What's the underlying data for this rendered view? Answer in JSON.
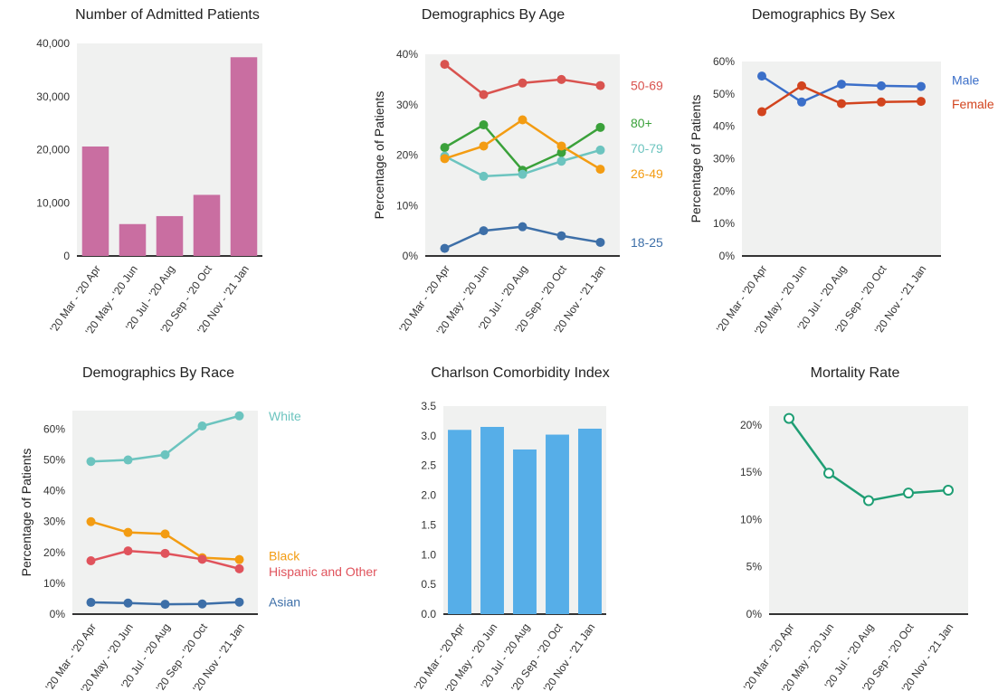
{
  "chart_data": [
    {
      "type": "bar",
      "title": "Number of Admitted Patients",
      "categories": [
        "'20 Mar - '20 Apr",
        "'20 May - '20 Jun",
        "'20 Jul - '20 Aug",
        "'20 Sep - '20 Oct",
        "'20 Nov - '21 Jan"
      ],
      "values": [
        20600,
        6000,
        7500,
        11500,
        37400
      ],
      "ylim": [
        0,
        40000
      ],
      "yticks": [
        0,
        10000,
        20000,
        30000,
        40000
      ],
      "ytick_labels": [
        "0",
        "10,000",
        "20,000",
        "30,000",
        "40,000"
      ],
      "color": "#c96ea1",
      "grid": false
    },
    {
      "type": "line",
      "title": "Demographics By Age",
      "ylabel": "Percentage of Patients",
      "categories": [
        "'20 Mar - '20 Apr",
        "'20 May - '20 Jun",
        "'20 Jul - '20 Aug",
        "'20 Sep - '20 Oct",
        "'20 Nov - '21 Jan"
      ],
      "series": [
        {
          "name": "50-69",
          "values": [
            38,
            32,
            34.3,
            35,
            33.8
          ],
          "color": "#d9534f"
        },
        {
          "name": "80+",
          "values": [
            21.5,
            26,
            17,
            20.5,
            25.5
          ],
          "color": "#3aa13a"
        },
        {
          "name": "70-79",
          "values": [
            19.8,
            15.8,
            16.2,
            18.8,
            21
          ],
          "color": "#6cc4bf"
        },
        {
          "name": "26-49",
          "values": [
            19.3,
            21.8,
            27,
            21.8,
            17.2
          ],
          "color": "#f39c12"
        },
        {
          "name": "18-25",
          "values": [
            1.5,
            5,
            5.8,
            4,
            2.7
          ],
          "color": "#3d6fa8"
        }
      ],
      "ylim": [
        0,
        40
      ],
      "yticks": [
        0,
        10,
        20,
        30,
        40
      ],
      "ytick_labels": [
        "0%",
        "10%",
        "20%",
        "30%",
        "40%"
      ],
      "grid": false,
      "legend_placement": "inline-right"
    },
    {
      "type": "line",
      "title": "Demographics By Sex",
      "ylabel": "Percentage of Patients",
      "categories": [
        "'20 Mar - '20 Apr",
        "'20 May - '20 Jun",
        "'20 Jul - '20 Aug",
        "'20 Sep - '20 Oct",
        "'20 Nov - '21 Jan"
      ],
      "series": [
        {
          "name": "Male",
          "values": [
            55.5,
            47.5,
            53,
            52.5,
            52.3
          ],
          "color": "#3b6fc9"
        },
        {
          "name": "Female",
          "values": [
            44.5,
            52.5,
            47,
            47.5,
            47.7
          ],
          "color": "#d2441e"
        }
      ],
      "ylim": [
        0,
        60
      ],
      "yticks": [
        0,
        10,
        20,
        30,
        40,
        50,
        60
      ],
      "ytick_labels": [
        "0%",
        "10%",
        "20%",
        "30%",
        "40%",
        "50%",
        "60%"
      ],
      "grid": false,
      "legend_placement": "inline-right"
    },
    {
      "type": "line",
      "title": "Demographics By Race",
      "ylabel": "Percentage of Patients",
      "categories": [
        "'20 Mar - '20 Apr",
        "'20 May - '20 Jun",
        "'20 Jul - '20 Aug",
        "'20 Sep - '20 Oct",
        "'20 Nov - '21 Jan"
      ],
      "series": [
        {
          "name": "White",
          "values": [
            49.5,
            50,
            51.7,
            61,
            64.3
          ],
          "color": "#6cc4bf"
        },
        {
          "name": "Black",
          "values": [
            30,
            26.5,
            26,
            18.3,
            17.7
          ],
          "color": "#f39c12"
        },
        {
          "name": "Hispanic and Other",
          "values": [
            17.3,
            20.5,
            19.7,
            17.8,
            14.7
          ],
          "color": "#e0535c"
        },
        {
          "name": "Asian",
          "values": [
            3.8,
            3.6,
            3.2,
            3.3,
            3.9
          ],
          "color": "#3d6fa8"
        }
      ],
      "ylim": [
        0,
        66
      ],
      "yticks": [
        0,
        10,
        20,
        30,
        40,
        50,
        60
      ],
      "ytick_labels": [
        "0%",
        "10%",
        "20%",
        "30%",
        "40%",
        "50%",
        "60%"
      ],
      "grid": false,
      "legend_placement": "inline-right"
    },
    {
      "type": "bar",
      "title": "Charlson Comorbidity Index",
      "categories": [
        "'20 Mar - '20 Apr",
        "'20 May - '20 Jun",
        "'20 Jul - '20 Aug",
        "'20 Sep - '20 Oct",
        "'20 Nov - '21 Jan"
      ],
      "values": [
        3.1,
        3.15,
        2.77,
        3.02,
        3.12
      ],
      "ylim": [
        0,
        3.5
      ],
      "yticks": [
        0,
        0.5,
        1,
        1.5,
        2,
        2.5,
        3,
        3.5
      ],
      "ytick_labels": [
        "0.0",
        "0.5",
        "1.0",
        "1.5",
        "2.0",
        "2.5",
        "3.0",
        "3.5"
      ],
      "color": "#56aee8",
      "grid": false
    },
    {
      "type": "line",
      "title": "Mortality Rate",
      "categories": [
        "'20 Mar - '20 Apr",
        "'20 May - '20 Jun",
        "'20 Jul - '20 Aug",
        "'20 Sep - '20 Oct",
        "'20 Nov - '21 Jan"
      ],
      "series": [
        {
          "values": [
            20.7,
            14.9,
            12,
            12.8,
            13.1
          ],
          "color": "#1f9e74",
          "hollow_markers": true
        }
      ],
      "ylim": [
        0,
        22
      ],
      "yticks": [
        0,
        5,
        10,
        15,
        20
      ],
      "ytick_labels": [
        "0%",
        "5%",
        "10%",
        "15%",
        "20%"
      ],
      "grid": false
    }
  ]
}
